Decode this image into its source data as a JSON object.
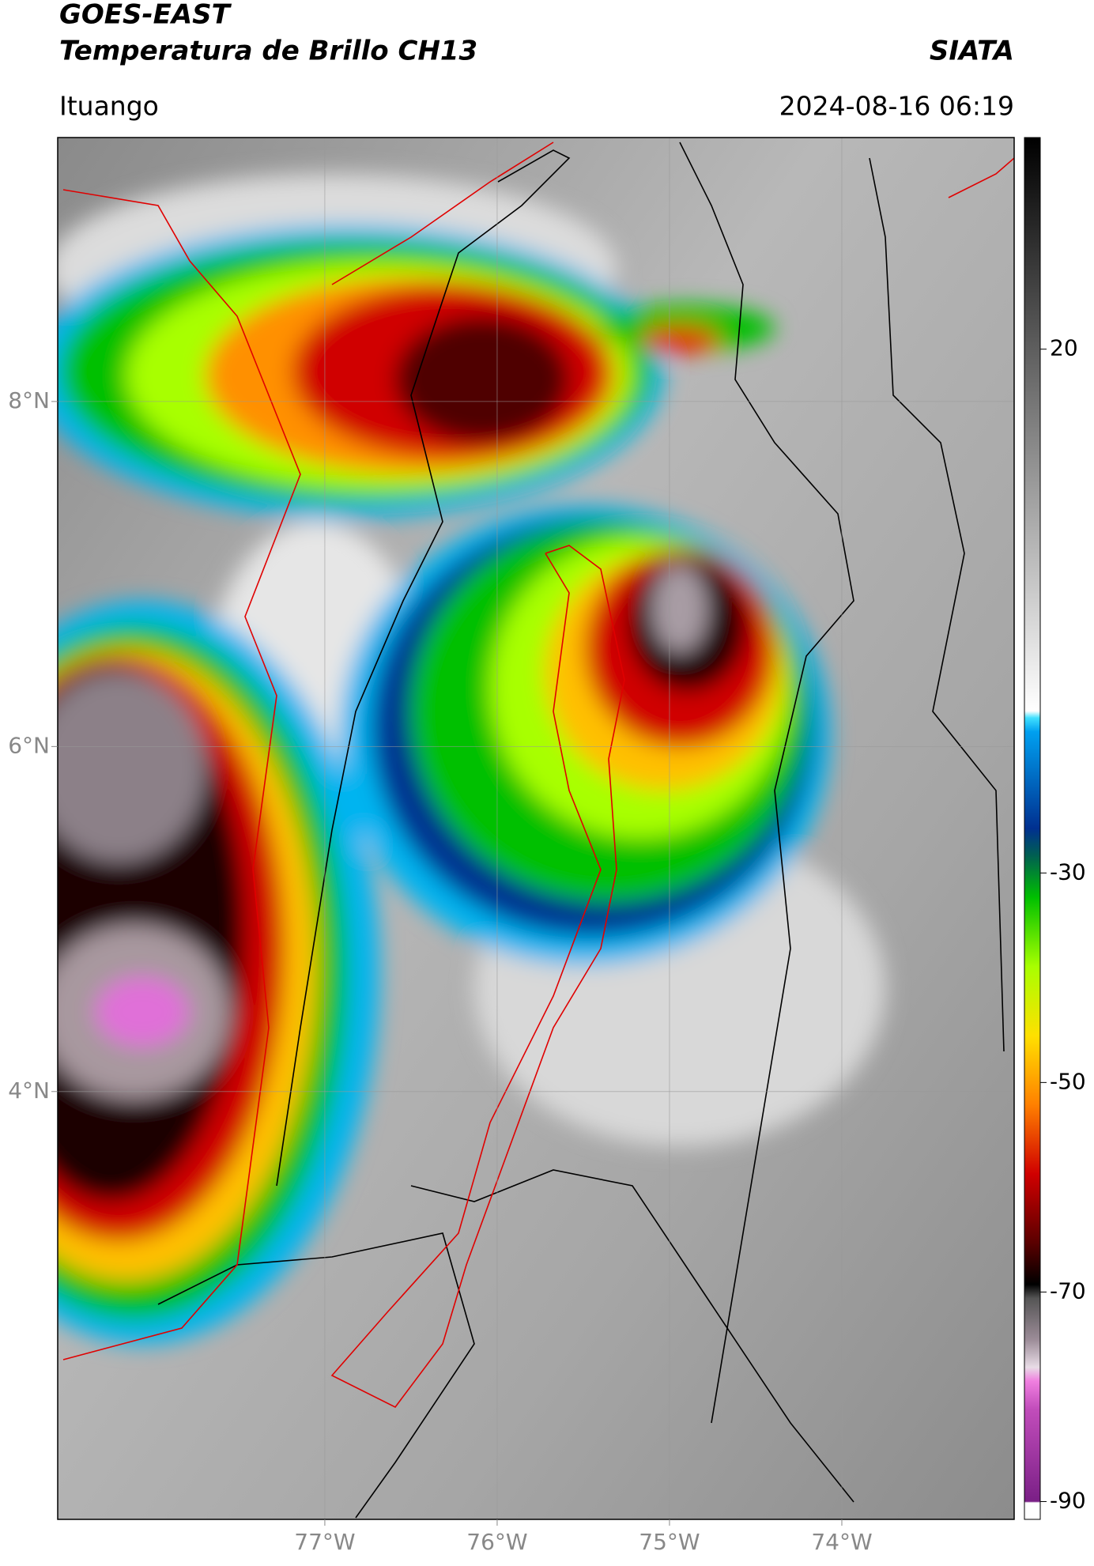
{
  "header": {
    "title": "GOES-EAST",
    "subtitle": "Temperatura de Brillo CH13",
    "org": "SIATA",
    "location": "Ituango",
    "datetime": "2024-08-16 06:19"
  },
  "map": {
    "lonlim": [
      -78.55,
      -73.0
    ],
    "latlim": [
      1.52,
      9.53
    ],
    "xticks": [
      {
        "value": -77,
        "label": "77°W"
      },
      {
        "value": -76,
        "label": "76°W"
      },
      {
        "value": -75,
        "label": "75°W"
      },
      {
        "value": -74,
        "label": "74°W"
      }
    ],
    "yticks": [
      {
        "value": 8,
        "label": "8°N"
      },
      {
        "value": 6,
        "label": "6°N"
      },
      {
        "value": 4,
        "label": "4°N"
      }
    ],
    "grid": true
  },
  "colorbar": {
    "lim": [
      -91.7,
      40.2
    ],
    "ticks": [
      20,
      -30,
      -50,
      -70,
      -90
    ]
  }
}
